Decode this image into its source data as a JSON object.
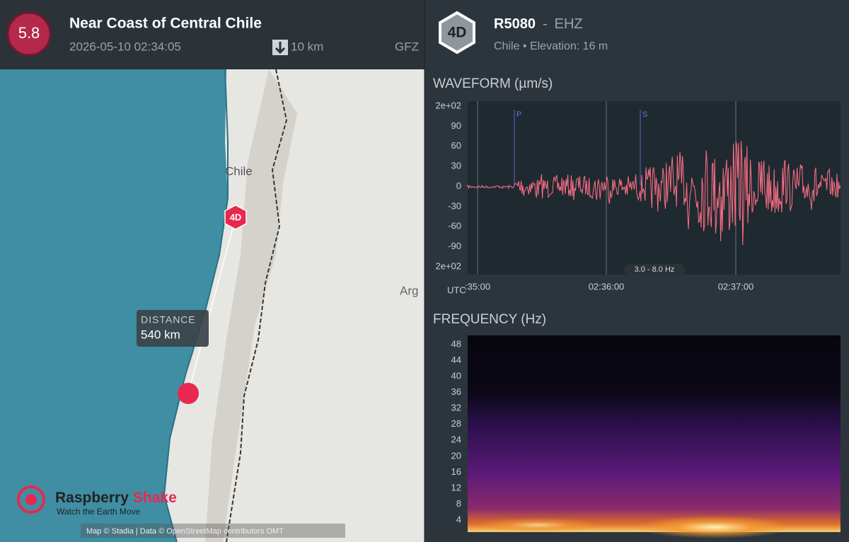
{
  "header": {
    "magnitude": "5.8",
    "title": "Near Coast of Central Chile",
    "datetime": "2026-05-10 02:34:05",
    "depth": "10 km",
    "agency": "GFZ"
  },
  "station": {
    "badge": "4D",
    "code": "R5080",
    "separator": "-",
    "channel": "EHZ",
    "location": "Chile • Elevation: 16 m"
  },
  "map": {
    "country_label": "Chile",
    "neighbor_label": "Arg",
    "station_marker": "4D",
    "distance_title": "DISTANCE",
    "distance_value": "540 km",
    "logo_name": "Raspberry",
    "logo_accent": "Shake",
    "logo_tagline": "Watch the Earth Move",
    "attribution": "Map © Stadia | Data © OpenStreetMap contributors OMT"
  },
  "waveform": {
    "title": "WAVEFORM (µm/s)",
    "yticks": [
      "2e+02",
      "90",
      "60",
      "30",
      "0",
      "-30",
      "-60",
      "-90",
      "2e+02"
    ],
    "time_zone": "UTC",
    "xticks": [
      ":35:00",
      "02:36:00",
      "02:37:00"
    ],
    "p_label": "P",
    "s_label": "S",
    "filter": "3.0 - 8.0 Hz"
  },
  "frequency": {
    "title": "FREQUENCY (Hz)",
    "yticks": [
      "48",
      "44",
      "40",
      "36",
      "32",
      "28",
      "24",
      "20",
      "16",
      "12",
      "8",
      "4"
    ]
  }
}
